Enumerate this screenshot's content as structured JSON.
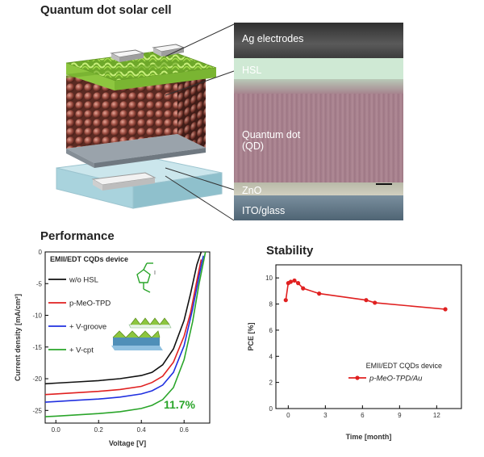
{
  "top": {
    "title": "Quantum dot solar cell",
    "layers": [
      {
        "label": "Ag electrodes"
      },
      {
        "label": "HSL"
      },
      {
        "label": "Quantum dot\n(QD)"
      },
      {
        "label": "ZnO"
      },
      {
        "label": "ITO/glass"
      }
    ]
  },
  "colors": {
    "layer_ag": "#4a4a4a",
    "layer_hsl": "#d7eedc",
    "layer_qd": "#a77f8c",
    "layer_zno": "#8f9aa5",
    "layer_ito": "#5a6f80",
    "qd_sphere": "#9a4b3f",
    "hsl_green": "#8dc63f",
    "substrate": "#cbe6ec"
  },
  "chart_data": [
    {
      "id": "performance",
      "type": "line",
      "title": "Performance",
      "xlabel": "Voltage [V]",
      "ylabel": "Current density [mA/cm²]",
      "xlim": [
        -0.05,
        0.72
      ],
      "ylim": [
        -27,
        0
      ],
      "xticks": [
        0.0,
        0.2,
        0.4,
        0.6
      ],
      "xtick_labels": [
        "0.0",
        "0.2",
        "0.4",
        "0.6"
      ],
      "yticks": [
        0,
        -5,
        -10,
        -15,
        -20,
        -25
      ],
      "ytick_labels": [
        "0",
        "-5",
        "-10",
        "-15",
        "-20",
        "-25"
      ],
      "annotation_title": "EMII/EDT CQDs device",
      "efficiency_label": "11.7%",
      "efficiency_color": "#2aa52a",
      "series": [
        {
          "name": "w/o HSL",
          "color": "#111111",
          "x": [
            -0.05,
            0.0,
            0.1,
            0.2,
            0.3,
            0.4,
            0.45,
            0.5,
            0.55,
            0.6,
            0.63,
            0.66,
            0.68
          ],
          "y": [
            -20.8,
            -20.7,
            -20.5,
            -20.3,
            -20.0,
            -19.5,
            -19.0,
            -17.8,
            -15.3,
            -10.8,
            -6.6,
            -2.0,
            0.0
          ]
        },
        {
          "name": "p-MeO-TPD",
          "color": "#e02020",
          "x": [
            -0.05,
            0.0,
            0.1,
            0.2,
            0.3,
            0.4,
            0.45,
            0.5,
            0.55,
            0.6,
            0.63,
            0.66,
            0.68
          ],
          "y": [
            -22.5,
            -22.4,
            -22.2,
            -22.0,
            -21.7,
            -21.2,
            -20.6,
            -19.6,
            -17.4,
            -13.3,
            -9.6,
            -4.5,
            -1.2
          ]
        },
        {
          "name": "+ V-groove",
          "color": "#2030e0",
          "x": [
            -0.05,
            0.0,
            0.1,
            0.2,
            0.3,
            0.4,
            0.45,
            0.5,
            0.55,
            0.6,
            0.64,
            0.67,
            0.69
          ],
          "y": [
            -23.7,
            -23.6,
            -23.4,
            -23.2,
            -22.9,
            -22.4,
            -21.9,
            -21.0,
            -19.0,
            -14.8,
            -9.0,
            -3.8,
            -0.6
          ]
        },
        {
          "name": "+ V-cpt",
          "color": "#2aa52a",
          "x": [
            -0.05,
            0.0,
            0.1,
            0.2,
            0.3,
            0.4,
            0.45,
            0.5,
            0.55,
            0.6,
            0.64,
            0.67,
            0.7
          ],
          "y": [
            -26.0,
            -25.9,
            -25.7,
            -25.5,
            -25.2,
            -24.7,
            -24.2,
            -23.3,
            -21.4,
            -17.0,
            -11.0,
            -5.0,
            0.0
          ]
        }
      ]
    },
    {
      "id": "stability",
      "type": "line",
      "title": "Stability",
      "xlabel": "Time [month]",
      "ylabel": "PCE [%]",
      "xlim": [
        -1,
        14
      ],
      "ylim": [
        0,
        11
      ],
      "xticks": [
        0,
        3,
        6,
        9,
        12
      ],
      "xtick_labels": [
        "0",
        "3",
        "6",
        "9",
        "12"
      ],
      "yticks": [
        0,
        2,
        4,
        6,
        8,
        10
      ],
      "ytick_labels": [
        "0",
        "2",
        "4",
        "6",
        "8",
        "10"
      ],
      "annotation_title": "EMII/EDT CQDs device",
      "series": [
        {
          "name": "p-MeO-TPD/Au",
          "color": "#e02020",
          "x": [
            -0.2,
            0.0,
            0.2,
            0.5,
            0.8,
            1.2,
            2.5,
            6.3,
            7.0,
            12.7
          ],
          "y": [
            8.3,
            9.6,
            9.7,
            9.8,
            9.6,
            9.2,
            8.8,
            8.3,
            8.1,
            7.6
          ]
        }
      ]
    }
  ]
}
